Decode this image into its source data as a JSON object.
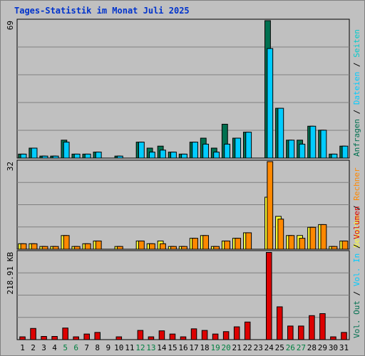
{
  "title": "Tages-Statistik im Monat Juli 2025",
  "colors": {
    "background": "#c0c0c0",
    "title": "#0033cc",
    "grid": "#808080",
    "anfragen": "#007050",
    "dateien": "#00ccff",
    "seiten": "#00cccc",
    "besuche": "#ffff33",
    "rechner": "#ff8800",
    "volumen": "#dd0000",
    "weekend_label": "#008040",
    "legend_sep": "#000000"
  },
  "chart_data": {
    "type": "bar",
    "days": [
      "1",
      "2",
      "3",
      "4",
      "5",
      "6",
      "7",
      "8",
      "9",
      "10",
      "11",
      "12",
      "13",
      "14",
      "15",
      "16",
      "17",
      "18",
      "19",
      "20",
      "21",
      "22",
      "23",
      "24",
      "25",
      "26",
      "27",
      "28",
      "29",
      "30",
      "31"
    ],
    "weekend_days": [
      5,
      6,
      12,
      13,
      19,
      20,
      26,
      27
    ],
    "panels": [
      {
        "id": "hits",
        "ymax": 69,
        "ymax_label": "69",
        "series": [
          {
            "name": "Anfragen",
            "color_key": "anfragen",
            "values": [
              2,
              5,
              1,
              1,
              9,
              2,
              2,
              3,
              0,
              1,
              0,
              8,
              5,
              6,
              3,
              2,
              8,
              10,
              5,
              17,
              10,
              13,
              0,
              69,
              25,
              9,
              9,
              16,
              14,
              2,
              6
            ]
          },
          {
            "name": "Dateien",
            "color_key": "dateien",
            "values": [
              2,
              5,
              1,
              1,
              8,
              2,
              2,
              3,
              0,
              1,
              0,
              8,
              3,
              4,
              3,
              2,
              8,
              7,
              3,
              7,
              10,
              13,
              0,
              55,
              25,
              9,
              7,
              16,
              14,
              2,
              6
            ]
          }
        ]
      },
      {
        "id": "visits",
        "ymax": 32,
        "ymax_label": "32",
        "series": [
          {
            "name": "Besuche",
            "color_key": "besuche",
            "values": [
              2,
              2,
              1,
              1,
              5,
              1,
              2,
              3,
              0,
              1,
              0,
              3,
              2,
              3,
              1,
              1,
              4,
              5,
              1,
              3,
              4,
              6,
              0,
              19,
              12,
              5,
              5,
              8,
              9,
              1,
              3
            ]
          },
          {
            "name": "Rechner",
            "color_key": "rechner",
            "values": [
              2,
              2,
              1,
              1,
              5,
              1,
              2,
              3,
              0,
              1,
              0,
              3,
              2,
              2,
              1,
              1,
              4,
              5,
              1,
              3,
              4,
              6,
              0,
              32,
              11,
              5,
              4,
              8,
              9,
              1,
              3
            ]
          }
        ]
      },
      {
        "id": "volume",
        "ymax": 218.91,
        "ymax_label": "218.91 KB",
        "series": [
          {
            "name": "Volumen",
            "color_key": "volumen",
            "values": [
              7,
              28,
              8,
              8,
              29,
              7,
              14,
              18,
              0,
              7,
              0,
              23,
              7,
              22,
              14,
              7,
              27,
              23,
              14,
              20,
              32,
              44,
              0,
              218,
              82,
              34,
              34,
              60,
              65,
              7,
              18
            ]
          }
        ]
      }
    ],
    "legend": [
      {
        "label": "Anfragen",
        "color_key": "anfragen"
      },
      {
        "label": "Dateien",
        "color_key": "dateien"
      },
      {
        "label": "Seiten",
        "color_key": "seiten"
      },
      {
        "label": "Besuche",
        "color_key": "besuche"
      },
      {
        "label": "Rechner",
        "color_key": "rechner"
      },
      {
        "label": "Vol. Out",
        "color_key": "anfragen"
      },
      {
        "label": "Vol. In",
        "color_key": "dateien"
      },
      {
        "label": "Volumen",
        "color_key": "volumen"
      }
    ]
  }
}
